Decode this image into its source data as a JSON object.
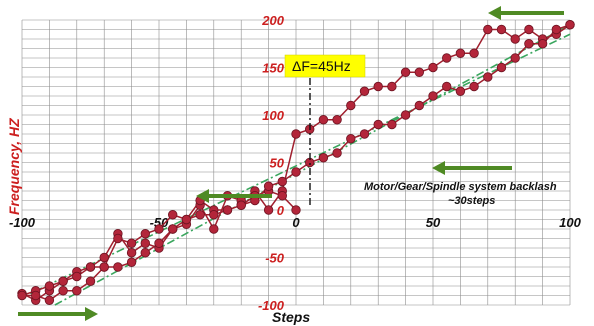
{
  "chart_data": {
    "type": "line",
    "title": "",
    "xlabel": "Steps",
    "ylabel": "Frequency, HZ",
    "xlim": [
      -100,
      100
    ],
    "ylim": [
      -100,
      200
    ],
    "x_ticks": [
      "-100",
      "-50",
      "0",
      "50",
      "100"
    ],
    "y_ticks": [
      "-100",
      "-50",
      "0",
      "50",
      "100",
      "150",
      "200"
    ],
    "grid": true,
    "annotation_delta": "ΔF=45Hz",
    "annotation_note_line1": "Motor/Gear/Spindle system backlash",
    "annotation_note_line2": "~30steps",
    "colors": {
      "series": "#a01f2e",
      "marker": "#b3263a",
      "guide": "#3aa65e",
      "arrow": "#4f8a24",
      "delta_box": "#ffff00",
      "y_ticks": "#cc1f1f"
    },
    "series": [
      {
        "values_x": [
          -100,
          -95,
          -90,
          -85,
          -80,
          -75,
          -70,
          -65,
          -60,
          -55,
          -50,
          -45,
          -40,
          -35,
          -30,
          -25,
          -20,
          -15,
          -10,
          -5,
          0,
          5,
          10,
          15,
          20,
          25,
          30,
          35,
          40,
          45,
          50,
          55,
          60,
          65,
          70,
          75,
          80,
          85,
          90,
          95,
          100
        ],
        "values_y": [
          -88,
          -95,
          -85,
          -75,
          -65,
          -60,
          -50,
          -25,
          -45,
          -35,
          -40,
          -20,
          -15,
          5,
          -20,
          15,
          10,
          20,
          0,
          20,
          80,
          85,
          95,
          95,
          110,
          125,
          130,
          130,
          145,
          145,
          150,
          160,
          165,
          165,
          190,
          190,
          180,
          190,
          180,
          185,
          195
        ]
      },
      {
        "values_x": [
          0,
          -5,
          -10,
          -15,
          -20,
          -25,
          -30,
          -35,
          -40,
          -45,
          -50,
          -55,
          -60,
          -65,
          -70,
          -75,
          -80,
          -85,
          -90,
          -95,
          -100,
          -95,
          -90,
          -85,
          -80,
          -75,
          -70,
          -65,
          -60,
          -55,
          -50,
          -45,
          -40,
          -35,
          -30,
          -25,
          -20,
          -15,
          -10,
          -5,
          0,
          5,
          10,
          15,
          20,
          25,
          30,
          35,
          40,
          45,
          50,
          55,
          60,
          65,
          70,
          75,
          80,
          85,
          90,
          95,
          100
        ],
        "values_y": [
          0,
          15,
          20,
          15,
          5,
          0,
          0,
          10,
          -10,
          -5,
          -20,
          -25,
          -35,
          -30,
          -60,
          -60,
          -70,
          -75,
          -80,
          -85,
          -90,
          -90,
          -95,
          -85,
          -85,
          -75,
          -60,
          -60,
          -55,
          -45,
          -35,
          -20,
          -10,
          -5,
          -5,
          0,
          5,
          10,
          25,
          30,
          40,
          50,
          55,
          60,
          75,
          80,
          90,
          90,
          100,
          110,
          120,
          130,
          125,
          130,
          140,
          150,
          160,
          175,
          175,
          190,
          195
        ]
      }
    ]
  }
}
